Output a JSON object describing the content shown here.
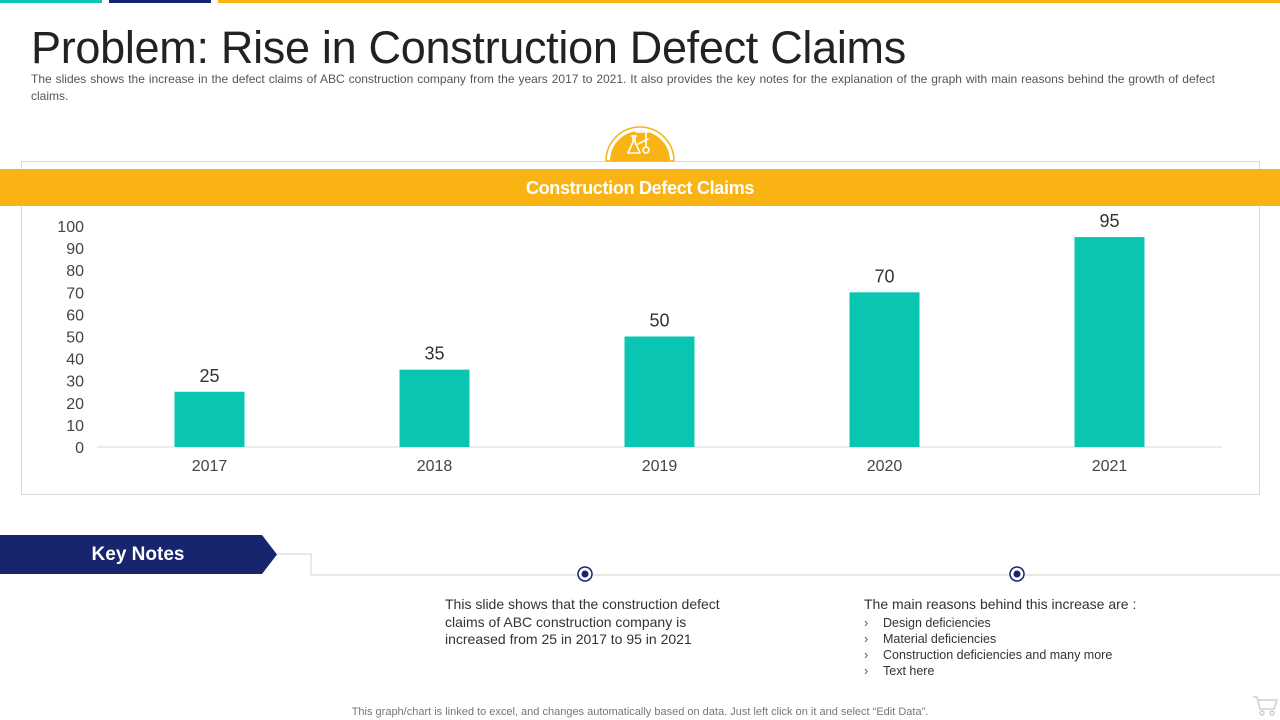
{
  "title": "Problem: Rise in Construction Defect Claims",
  "subtitle": "The slides shows the increase in the defect claims of ABC construction company from the years 2017 to 2021. It also provides the key notes for the explanation of the graph with main reasons behind the growth of defect claims.",
  "colors": {
    "teal": "#0ac5b2",
    "navy": "#17256e",
    "gold": "#f9b312"
  },
  "icons": {
    "badge": "lab-flask-icon",
    "footer": "shopping-cart-icon"
  },
  "chart_data": {
    "type": "bar",
    "title": "Construction Defect Claims",
    "categories": [
      "2017",
      "2018",
      "2019",
      "2020",
      "2021"
    ],
    "values": [
      25,
      35,
      50,
      70,
      95
    ],
    "data_labels": [
      "25",
      "35",
      "50",
      "70",
      "95"
    ],
    "ylim": [
      0,
      100
    ],
    "yticks": [
      0,
      10,
      20,
      30,
      40,
      50,
      60,
      70,
      80,
      90,
      100
    ],
    "xlabel": "",
    "ylabel": "",
    "grid": false,
    "legend": "none",
    "bar_color": "#0ac5b2"
  },
  "key_notes": {
    "label": "Key Notes",
    "note": "This slide shows that the construction defect claims of ABC construction company is increased from 25 in 2017 to 95 in 2021",
    "reasons_title": "The main reasons behind this increase are :",
    "bullet_symbol": "›",
    "reasons": [
      "Design deficiencies",
      "Material deficiencies",
      "Construction deficiencies and many more",
      "Text here"
    ]
  },
  "footer": "This graph/chart is linked to excel, and changes automatically based on data. Just left click on it and select “Edit Data”."
}
